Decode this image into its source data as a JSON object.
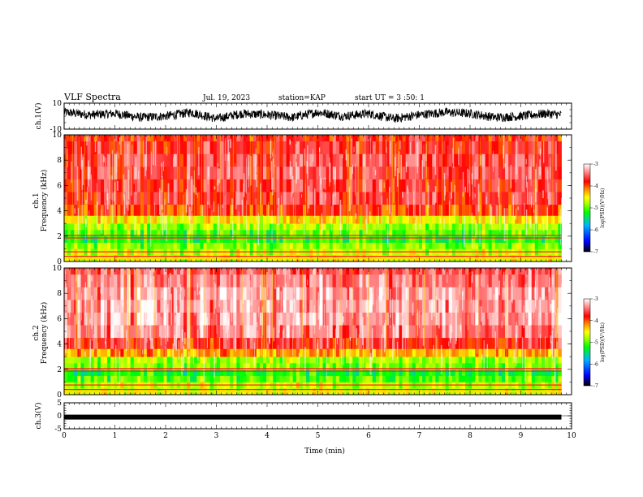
{
  "header": {
    "title": "VLF Spectra",
    "date": "Jul. 19, 2023",
    "station": "station=KAP",
    "start": "start UT =  3 :50: 1"
  },
  "colors": {
    "colormap": [
      "#000000",
      "#0000ff",
      "#00b4ff",
      "#00ff00",
      "#aaff00",
      "#ffff00",
      "#ff8000",
      "#ff0000",
      "#ffffff"
    ],
    "trace": "#000000",
    "axes": "#000000"
  },
  "chart_data": [
    {
      "type": "line",
      "ylabel": "ch.1(V)",
      "ylim": [
        -10,
        10
      ],
      "yticks": [
        "10",
        "-10"
      ],
      "x": [
        0,
        0.5,
        1,
        1.5,
        2,
        2.5,
        3,
        3.5,
        4,
        4.5,
        5,
        5.5,
        6,
        6.5,
        7,
        7.5,
        8,
        8.5,
        9,
        9.5,
        9.8
      ],
      "values": [
        3,
        1,
        2,
        -1,
        0,
        3,
        -2,
        2,
        1,
        -1,
        3,
        0,
        2,
        -2,
        1,
        3,
        2,
        -1,
        0,
        2,
        1
      ]
    },
    {
      "type": "heatmap",
      "ylabel": "ch.1\nFrequency (kHz)",
      "xlim": [
        0,
        10
      ],
      "ylim": [
        0,
        10
      ],
      "yticks": [
        "0",
        "2",
        "4",
        "6",
        "8",
        "10"
      ],
      "data_xmax": 9.8,
      "freq_kHz": [
        0.25,
        0.75,
        1.25,
        1.75,
        2.25,
        2.75,
        3.25,
        4,
        5,
        6,
        7,
        8,
        9,
        10
      ],
      "log_psd": [
        -4.6,
        -4.7,
        -4.9,
        -5.2,
        -5.0,
        -4.8,
        -4.5,
        -3.9,
        -3.7,
        -3.7,
        -3.6,
        -3.6,
        -3.7,
        -3.8
      ],
      "colorbar": {
        "label": "log(PSD)(V²/Hz)",
        "range": [
          -7,
          -3
        ],
        "ticks": [
          "-3",
          "-4",
          "-5",
          "-6",
          "-7"
        ]
      }
    },
    {
      "type": "heatmap",
      "ylabel": "ch.2\nFrequency (kHz)",
      "xlim": [
        0,
        10
      ],
      "ylim": [
        0,
        10
      ],
      "yticks": [
        "0",
        "2",
        "4",
        "6",
        "8",
        "10"
      ],
      "data_xmax": 9.8,
      "freq_kHz": [
        0.25,
        0.75,
        1.25,
        1.75,
        2.25,
        2.75,
        3.25,
        4,
        5,
        6,
        7,
        8,
        9,
        10
      ],
      "log_psd": [
        -4.6,
        -4.7,
        -5.0,
        -5.2,
        -4.9,
        -4.8,
        -4.2,
        -3.7,
        -3.4,
        -3.3,
        -3.3,
        -3.3,
        -3.4,
        -3.5
      ],
      "colorbar": {
        "label": "log(PSD)(V²/Hz)",
        "range": [
          -7,
          -3
        ],
        "ticks": [
          "-3",
          "-4",
          "-5",
          "-6",
          "-7"
        ]
      }
    },
    {
      "type": "line",
      "ylabel": "ch.3(V)",
      "ylim": [
        -5,
        5
      ],
      "yticks": [
        "5",
        "0",
        "-5"
      ],
      "x": [
        0,
        9.8
      ],
      "values": [
        -0.5,
        -0.5
      ],
      "xlabel": "Time (min)",
      "xlim": [
        0,
        10
      ],
      "xticks": [
        "0",
        "1",
        "2",
        "3",
        "4",
        "5",
        "6",
        "7",
        "8",
        "9",
        "10"
      ]
    }
  ]
}
